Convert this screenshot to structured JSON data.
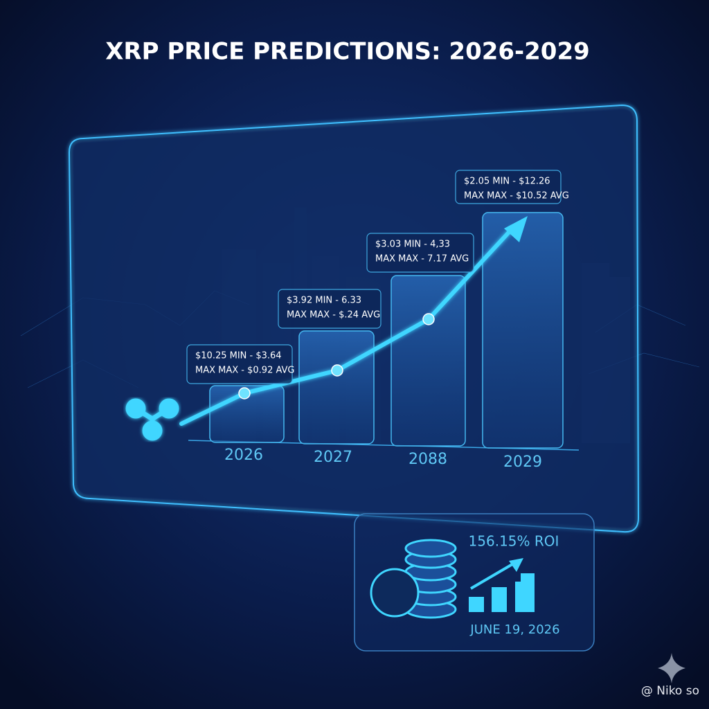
{
  "title": "XRP PRICE PREDICTIONS: 2026-2029",
  "chart_panel": {
    "callouts": [
      {
        "lines": [
          "$10.25 MIN - $3.64",
          "MAX MAX - $0.92 AVG"
        ]
      },
      {
        "lines": [
          "$3.92 MIN - 6.33",
          "MAX MAX - $.24 AVG"
        ]
      },
      {
        "lines": [
          "$3.03 MIN - 4,33",
          "MAX MAX - 7.17 AVG"
        ]
      },
      {
        "lines": [
          "$2.05 MIN - $12.26",
          "MAX MAX - $10.52 AVG"
        ]
      }
    ],
    "years": [
      "2026",
      "2027",
      "2088",
      "2029"
    ]
  },
  "roi_card": {
    "roi": "156.15% ROI",
    "date": "JUNE 19, 2026"
  },
  "watermark": "@ Niko so"
}
